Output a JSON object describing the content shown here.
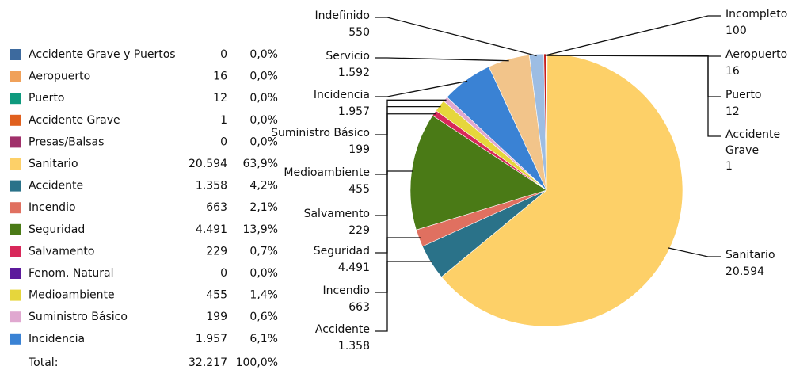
{
  "chart_data": {
    "type": "pie",
    "slices": [
      {
        "name": "Accidente Grave y Puertos",
        "color": "#3d6a9e",
        "value": 0,
        "value_label": "0",
        "percent": "0,0%"
      },
      {
        "name": "Aeropuerto",
        "color": "#f0a15a",
        "value": 16,
        "value_label": "16",
        "percent": "0,0%"
      },
      {
        "name": "Puerto",
        "color": "#0e9a7e",
        "value": 12,
        "value_label": "12",
        "percent": "0,0%"
      },
      {
        "name": "Accidente Grave",
        "color": "#e0601e",
        "value": 1,
        "value_label": "1",
        "percent": "0,0%"
      },
      {
        "name": "Presas/Balsas",
        "color": "#a0306a",
        "value": 0,
        "value_label": "0",
        "percent": "0,0%"
      },
      {
        "name": "Sanitario",
        "color": "#fdd068",
        "value": 20594,
        "value_label": "20.594",
        "percent": "63,9%"
      },
      {
        "name": "Accidente",
        "color": "#2a7289",
        "value": 1358,
        "value_label": "1.358",
        "percent": "4,2%"
      },
      {
        "name": "Incendio",
        "color": "#e07060",
        "value": 663,
        "value_label": "663",
        "percent": "2,1%"
      },
      {
        "name": "Seguridad",
        "color": "#4a7a16",
        "value": 4491,
        "value_label": "4.491",
        "percent": "13,9%"
      },
      {
        "name": "Salvamento",
        "color": "#d8285a",
        "value": 229,
        "value_label": "229",
        "percent": "0,7%"
      },
      {
        "name": "Fenom. Natural",
        "color": "#5c1a9c",
        "value": 0,
        "value_label": "0",
        "percent": "0,0%"
      },
      {
        "name": "Medioambiente",
        "color": "#e6d63c",
        "value": 455,
        "value_label": "455",
        "percent": "1,4%"
      },
      {
        "name": "Suministro Básico",
        "color": "#e0a8d0",
        "value": 199,
        "value_label": "199",
        "percent": "0,6%"
      },
      {
        "name": "Incidencia",
        "color": "#3a82d4",
        "value": 1957,
        "value_label": "1.957",
        "percent": "6,1%"
      },
      {
        "name": "Servicio",
        "color": "#f2c48a",
        "value": 1592,
        "value_label": "1.592"
      },
      {
        "name": "Indefinido",
        "color": "#9dbde3",
        "value": 550,
        "value_label": "550"
      },
      {
        "name": "Incompleto",
        "color": "#c81e1e",
        "value": 100,
        "value_label": "100"
      }
    ],
    "total": {
      "label": "Total:",
      "value": "32.217",
      "percent": "100,0%"
    }
  }
}
